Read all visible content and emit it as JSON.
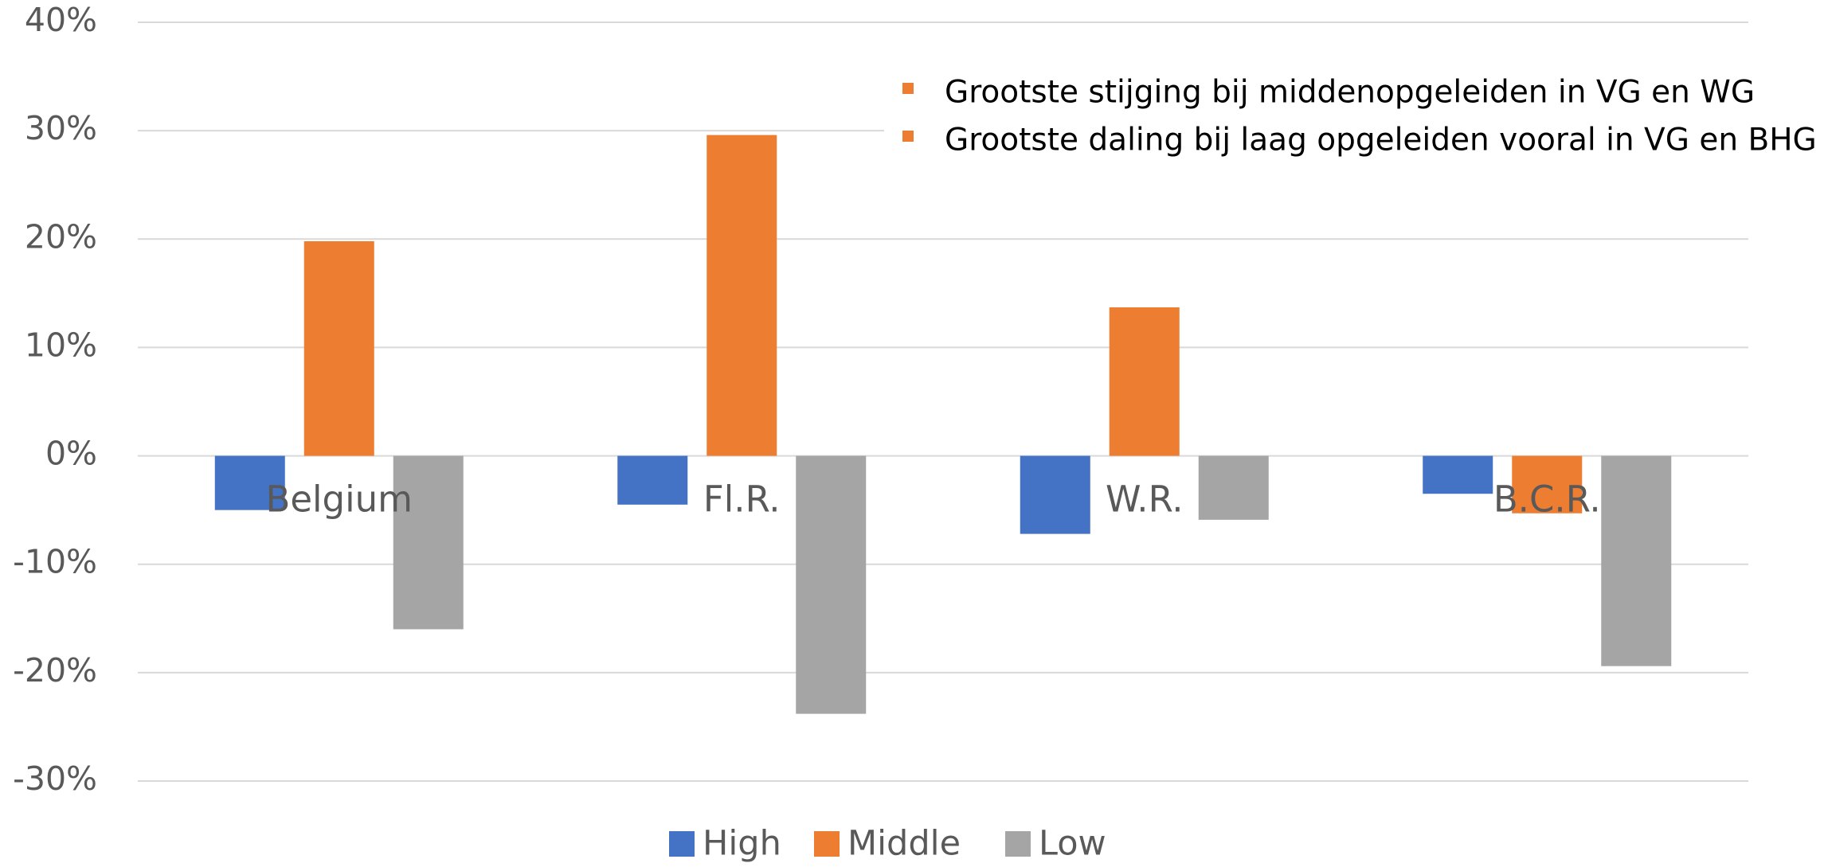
{
  "chart_data": {
    "type": "bar",
    "categories": [
      "Belgium",
      "Fl.R.",
      "W.R.",
      "B.C.R."
    ],
    "series": [
      {
        "name": "High",
        "color": "#4472C4",
        "values": [
          -5,
          -4.5,
          -7.2,
          -3.5
        ]
      },
      {
        "name": "Middle",
        "color": "#ED7D31",
        "values": [
          19.8,
          29.6,
          13.7,
          -5.3
        ]
      },
      {
        "name": "Low",
        "color": "#A5A5A5",
        "values": [
          -16,
          -23.8,
          -5.9,
          -19.4
        ]
      }
    ],
    "ylim": [
      -30,
      40
    ],
    "yticks": [
      40,
      30,
      20,
      10,
      0,
      -10,
      -20,
      -30
    ],
    "ytick_labels": [
      "40%",
      "30%",
      "20%",
      "10%",
      "0%",
      "-10%",
      "-20%",
      "-30%"
    ],
    "grid": true,
    "gridline_color": "#D9D9D9",
    "legend_position": "bottom",
    "title": "",
    "xlabel": "",
    "ylabel": "",
    "annotations": [
      {
        "text": "Grootste stijging  bij middenopgeleiden in VG en WG",
        "bullet_color": "#ED7D31"
      },
      {
        "text": "Grootste daling bij laag opgeleiden vooral in VG en BHG",
        "bullet_color": "#ED7D31"
      }
    ]
  }
}
